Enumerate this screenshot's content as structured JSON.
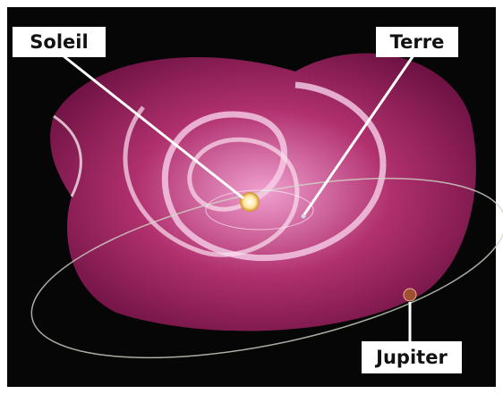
{
  "labels": [
    "Soleil",
    "Terre",
    "Jupiter"
  ]
}
